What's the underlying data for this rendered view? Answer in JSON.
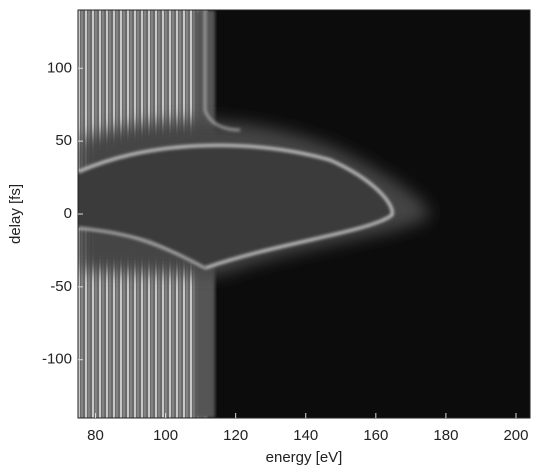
{
  "chart_data": {
    "type": "heatmap",
    "xlabel": "energy [eV]",
    "ylabel": "delay [fs]",
    "xlim": [
      75,
      204
    ],
    "xticks": [
      80,
      100,
      120,
      140,
      160,
      180,
      200
    ],
    "ylim": [
      -140,
      140
    ],
    "yticks": [
      -100,
      -50,
      0,
      50,
      100
    ]
  }
}
